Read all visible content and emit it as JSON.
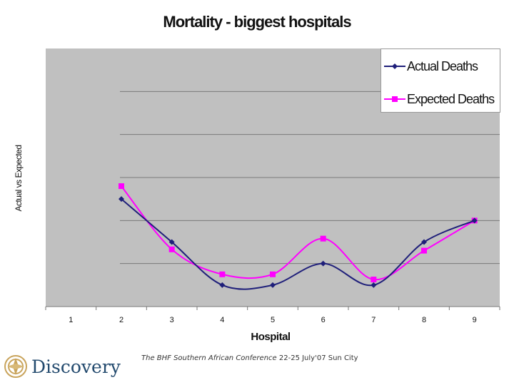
{
  "chart_data": {
    "type": "line",
    "title": "Mortality - biggest hospitals",
    "xlabel": "Hospital",
    "ylabel": "Actual vs Expected",
    "categories": [
      "1",
      "2",
      "3",
      "4",
      "5",
      "6",
      "7",
      "8",
      "9"
    ],
    "ylim": [
      0,
      6
    ],
    "grid": true,
    "legend_position": "top-right",
    "series": [
      {
        "name": "Actual Deaths",
        "color": "#1f1f7a",
        "marker": "diamond",
        "values": [
          null,
          2.5,
          1.5,
          0.5,
          0.5,
          1.0,
          0.5,
          1.5,
          2.0
        ]
      },
      {
        "name": "Expected Deaths",
        "color": "#ff00ff",
        "marker": "square",
        "values": [
          null,
          2.8,
          1.33,
          0.75,
          0.75,
          1.58,
          0.63,
          1.3,
          2.0
        ]
      }
    ]
  },
  "footer": {
    "conference_italic": "The BHF Southern African Conference",
    "conference_dates": "22-25 July'07 Sun City"
  },
  "logo": {
    "brand_name": "Discovery"
  }
}
